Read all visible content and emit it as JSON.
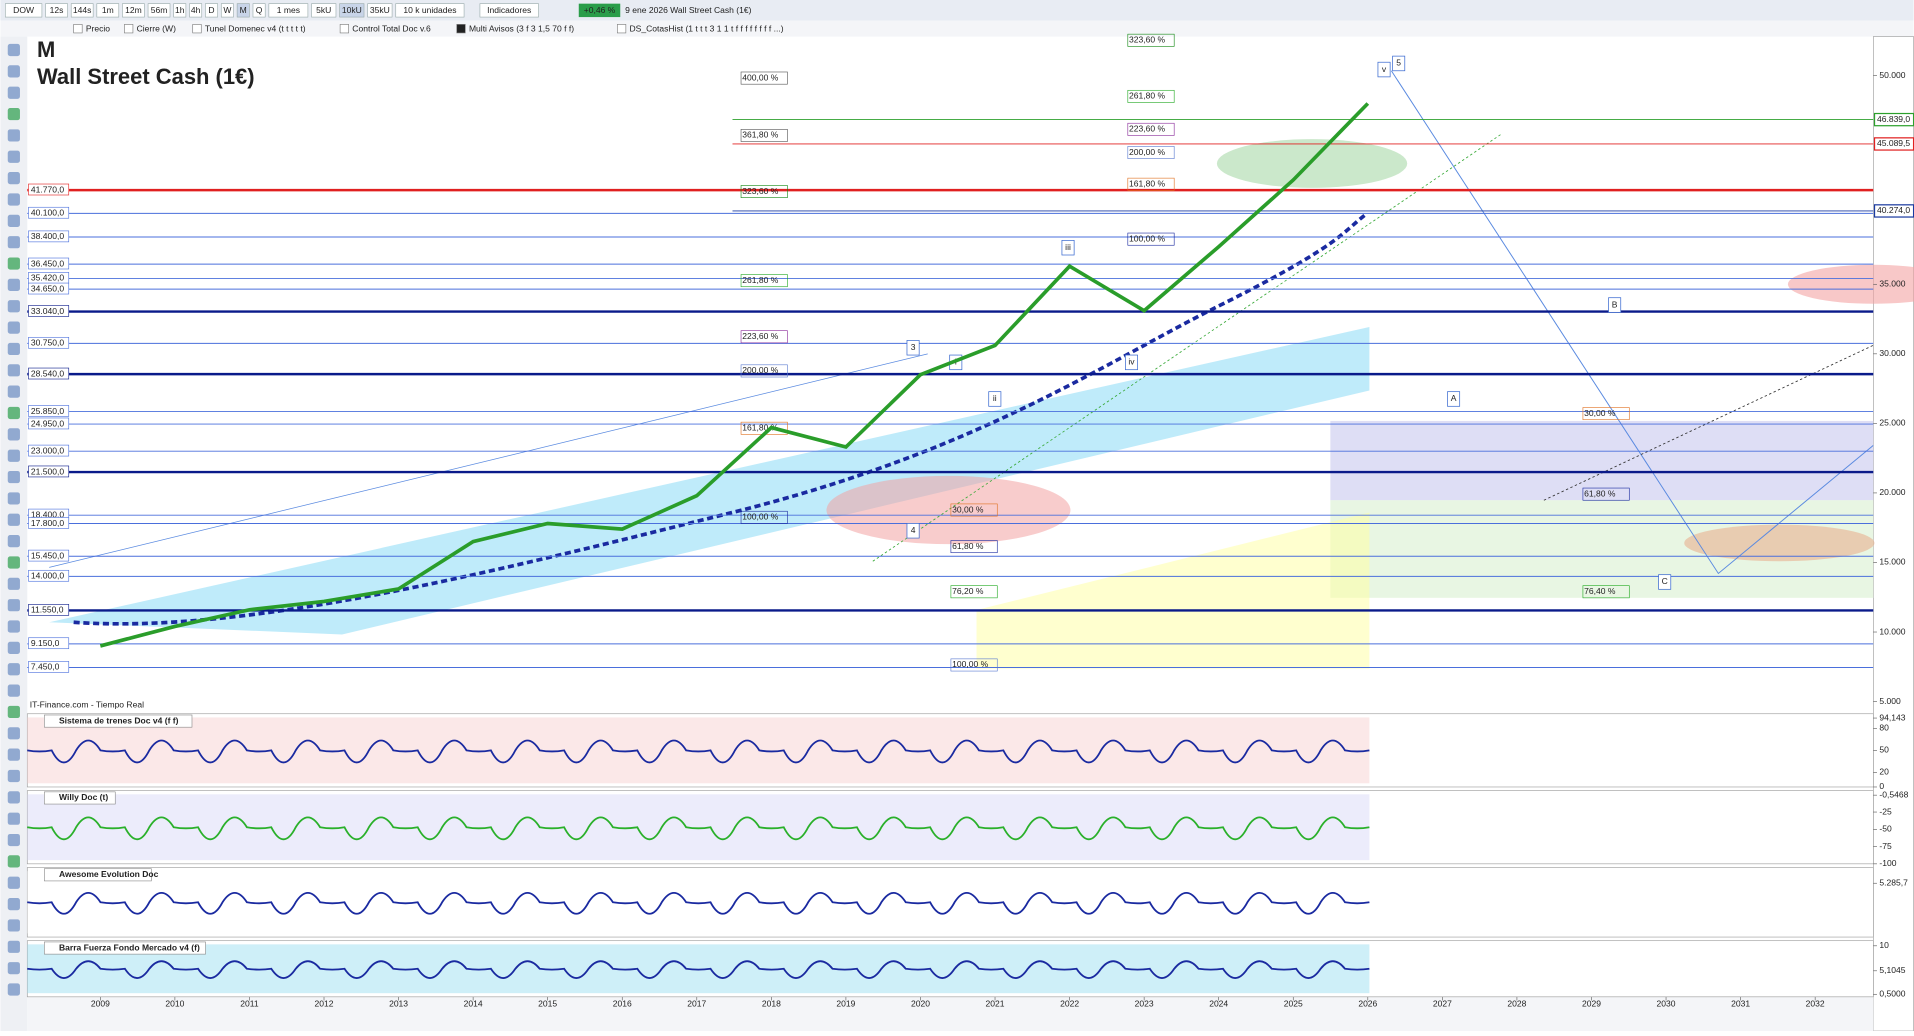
{
  "toolbar": {
    "symbol": "DOW",
    "timeframes": [
      "12s",
      "144s",
      "1m",
      "12m",
      "56m",
      "1h",
      "4h",
      "D",
      "W",
      "M",
      "Q"
    ],
    "period": "1 mes",
    "units": [
      "5kU",
      "10kU",
      "35kU"
    ],
    "units_select": "10 k unidades",
    "indicators_button": "Indicadores",
    "change": "+0,46 %",
    "status": "9 ene 2026  Wall Street Cash (1€)"
  },
  "legend_bar": [
    "Precio",
    "Cierre (W)",
    "Tunel Domenec v4 (t t t t t)",
    "Control Total Doc v.6",
    "Multi Avisos (3 f 3 1,5 70 f f)",
    "DS_CotasHist (1 t t t 3 1 1 t f f f f f f f f ...)"
  ],
  "chart": {
    "type": "line",
    "period_label": "M",
    "title": "Wall Street Cash (1€)",
    "source": "IT-Finance.com - Tiempo Real",
    "x": [
      2009,
      2010,
      2011,
      2012,
      2013,
      2014,
      2015,
      2016,
      2017,
      2018,
      2019,
      2020,
      2021,
      2022,
      2023,
      2024,
      2025,
      2026
    ],
    "values": [
      9000,
      10400,
      11600,
      12200,
      13100,
      16500,
      17800,
      17400,
      19800,
      24700,
      23300,
      28500,
      30600,
      36300,
      33100,
      37700,
      42500,
      48000
    ],
    "color": "#2a9d2a",
    "xlim": [
      2008.02,
      2032.78
    ],
    "xticks": [
      2009,
      2010,
      2011,
      2012,
      2013,
      2014,
      2015,
      2016,
      2017,
      2018,
      2019,
      2020,
      2021,
      2022,
      2023,
      2024,
      2025,
      2026,
      2027,
      2028,
      2029,
      2030,
      2031,
      2032
    ],
    "ylim": [
      4561,
      52807
    ],
    "yticks": [
      {
        "value": 5000,
        "label": "5.000"
      },
      {
        "value": 10000,
        "label": "10.000"
      },
      {
        "value": 15000,
        "label": "15.000"
      },
      {
        "value": 20000,
        "label": "20.000"
      },
      {
        "value": 25000,
        "label": "25.000"
      },
      {
        "value": 30000,
        "label": "30.000"
      },
      {
        "value": 35000,
        "label": "35.000"
      },
      {
        "value": 50000,
        "label": "50.000"
      }
    ],
    "levels": [
      {
        "value": 41770,
        "label": "41.770,0",
        "color": "#e02020"
      },
      {
        "value": 40100,
        "label": "40.100,0",
        "color": "#4a6fdc"
      },
      {
        "value": 38400,
        "label": "38.400,0",
        "color": "#4a6fdc"
      },
      {
        "value": 36450,
        "label": "36.450,0",
        "color": "#4a6fdc"
      },
      {
        "value": 35420,
        "label": "35.420,0",
        "color": "#4a6fdc"
      },
      {
        "value": 34650,
        "label": "34.650,0",
        "color": "#4a6fdc"
      },
      {
        "value": 33040,
        "label": "33.040,0",
        "color": "#0a1a8a"
      },
      {
        "value": 30750,
        "label": "30.750,0",
        "color": "#4a6fdc"
      },
      {
        "value": 28540,
        "label": "28.540,0",
        "color": "#0a1a8a"
      },
      {
        "value": 25850,
        "label": "25.850,0",
        "color": "#4a6fdc"
      },
      {
        "value": 24950,
        "label": "24.950,0",
        "color": "#4a6fdc"
      },
      {
        "value": 23000,
        "label": "23.000,0",
        "color": "#4a6fdc"
      },
      {
        "value": 21500,
        "label": "21.500,0",
        "color": "#0a1a8a"
      },
      {
        "value": 18400,
        "label": "18.400,0",
        "color": "#4a6fdc"
      },
      {
        "value": 17800,
        "label": "17.800,0",
        "color": "#4a6fdc"
      },
      {
        "value": 15450,
        "label": "15.450,0",
        "color": "#4a6fdc"
      },
      {
        "value": 14000,
        "label": "14.000,0",
        "color": "#4a6fdc"
      },
      {
        "value": 11550,
        "label": "11.550,0",
        "color": "#0a1a8a"
      },
      {
        "value": 9150,
        "label": "9.150,0",
        "color": "#4a6fdc"
      },
      {
        "value": 7450,
        "label": "7.450,0",
        "color": "#4a6fdc"
      }
    ],
    "right_labels": [
      {
        "value": 46839,
        "label": "46.839,0",
        "color": "#2ca02c"
      },
      {
        "value": 45089.5,
        "label": "45.089,5",
        "color": "#e02020"
      },
      {
        "value": 40274,
        "label": "40.274,0",
        "color": "#1a3aa0"
      }
    ],
    "annotations": [
      "323,60 %",
      "400,00 %",
      "261,80 %",
      "361,80 %",
      "223,60 %",
      "200,00 %",
      "161,80 %",
      "323,60 %",
      "261,80 %",
      "223,60 %",
      "200,00 %",
      "161,80 %",
      "100,00 %",
      "100,00 %",
      "30,00 %",
      "61,80 %",
      "76,40 %",
      "30,00 %",
      "61,80 %",
      "76,20 %",
      "100,00 %"
    ],
    "waves": [
      "v",
      "5",
      "iii",
      "3",
      "4",
      "i",
      "ii",
      "iv",
      "B",
      "A",
      "C"
    ]
  },
  "panes": [
    {
      "title": "Sistema de trenes Doc v4 (f f)",
      "ylim": [
        0,
        100
      ],
      "ticks": [
        {
          "value": 94.143,
          "label": "94,143"
        },
        80,
        50,
        20,
        0
      ]
    },
    {
      "title": "Willy Doc (t)",
      "ylim": [
        -100,
        6
      ],
      "ticks": [
        {
          "value": -0.5468,
          "label": "-0,5468"
        },
        -25,
        -50,
        -75,
        -100
      ]
    },
    {
      "title": "Awesome Evolution Doc",
      "ylim": [
        -4000,
        8000
      ],
      "ticks": [
        {
          "value": 5285.7,
          "label": "5.285,7"
        }
      ]
    },
    {
      "title": "Barra Fuerza Fondo Mercado v4 (f)",
      "ylim": [
        0,
        11
      ],
      "ticks": [
        10,
        {
          "value": 5.1045,
          "label": "5,1045"
        },
        {
          "value": 0.5,
          "label": "0,5000"
        }
      ]
    }
  ]
}
